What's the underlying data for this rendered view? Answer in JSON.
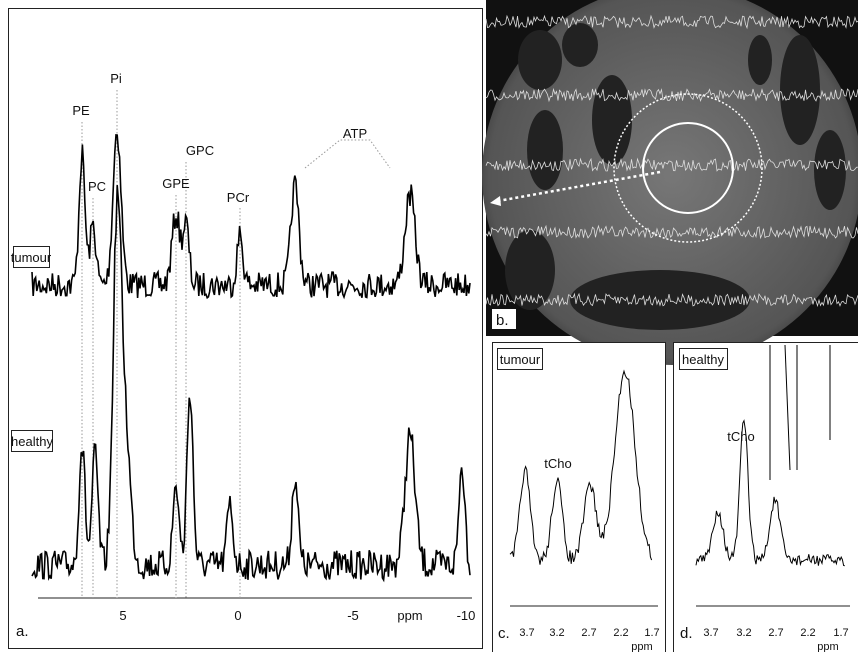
{
  "panel_a": {
    "peaks": [
      "PE",
      "PC",
      "Pi",
      "GPE",
      "GPC",
      "PCr",
      "ATP"
    ],
    "spectra": [
      "tumour",
      "healthy"
    ],
    "ticks": [
      "5",
      "0",
      "-5",
      "-10"
    ],
    "unit": "ppm",
    "label": "a."
  },
  "panel_b": {
    "label": "b."
  },
  "panel_c": {
    "spectrum": "tumour",
    "peak": "tCho",
    "ticks": [
      "3.7",
      "3.2",
      "2.7",
      "2.2",
      "1.7"
    ],
    "unit": "ppm",
    "label": "c."
  },
  "panel_d": {
    "spectrum": "healthy",
    "peak": "tCho",
    "ticks": [
      "3.7",
      "3.2",
      "2.7",
      "2.2",
      "1.7"
    ],
    "unit": "ppm",
    "label": "d."
  }
}
